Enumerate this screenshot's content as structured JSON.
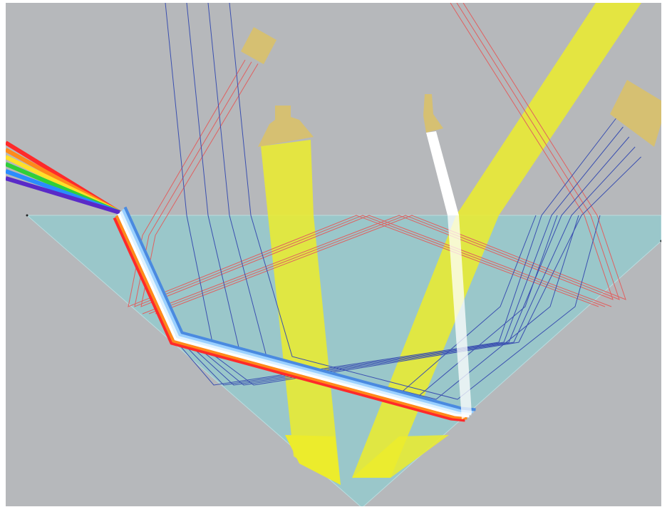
{
  "scene": {
    "background_color": "#b6b8bb",
    "frame_color": "#ffffff",
    "prism": {
      "fill": "#9ac7ca",
      "edge": "#b9dcdf",
      "shape": "inverted-triangle"
    },
    "lamps": [
      {
        "name": "upper-left-rect-lamp",
        "color": "#d6c072",
        "beam": "thin-red-rays",
        "ray_count": 3
      },
      {
        "name": "center-flashlight",
        "color": "#d6c072",
        "beam": "yellow-broad-beam"
      },
      {
        "name": "center-right-laser",
        "color": "#d6c072",
        "beam": "white-laser"
      },
      {
        "name": "right-rect-lamp",
        "color": "#d6c072",
        "beam": "blue-rays",
        "ray_count": 5
      }
    ],
    "beams": {
      "yellow_beam_color": "#ecec2c",
      "yellow_beam_opacity": 0.85,
      "white_laser_color": "#ffffff",
      "red_ray_color": "#e06060",
      "blue_ray_color": "#3a4fb0",
      "spectrum_colors": [
        "#ff2a2a",
        "#ff8a1a",
        "#ffe02a",
        "#2fcf3a",
        "#2a8cff",
        "#5a2ac8"
      ]
    }
  }
}
